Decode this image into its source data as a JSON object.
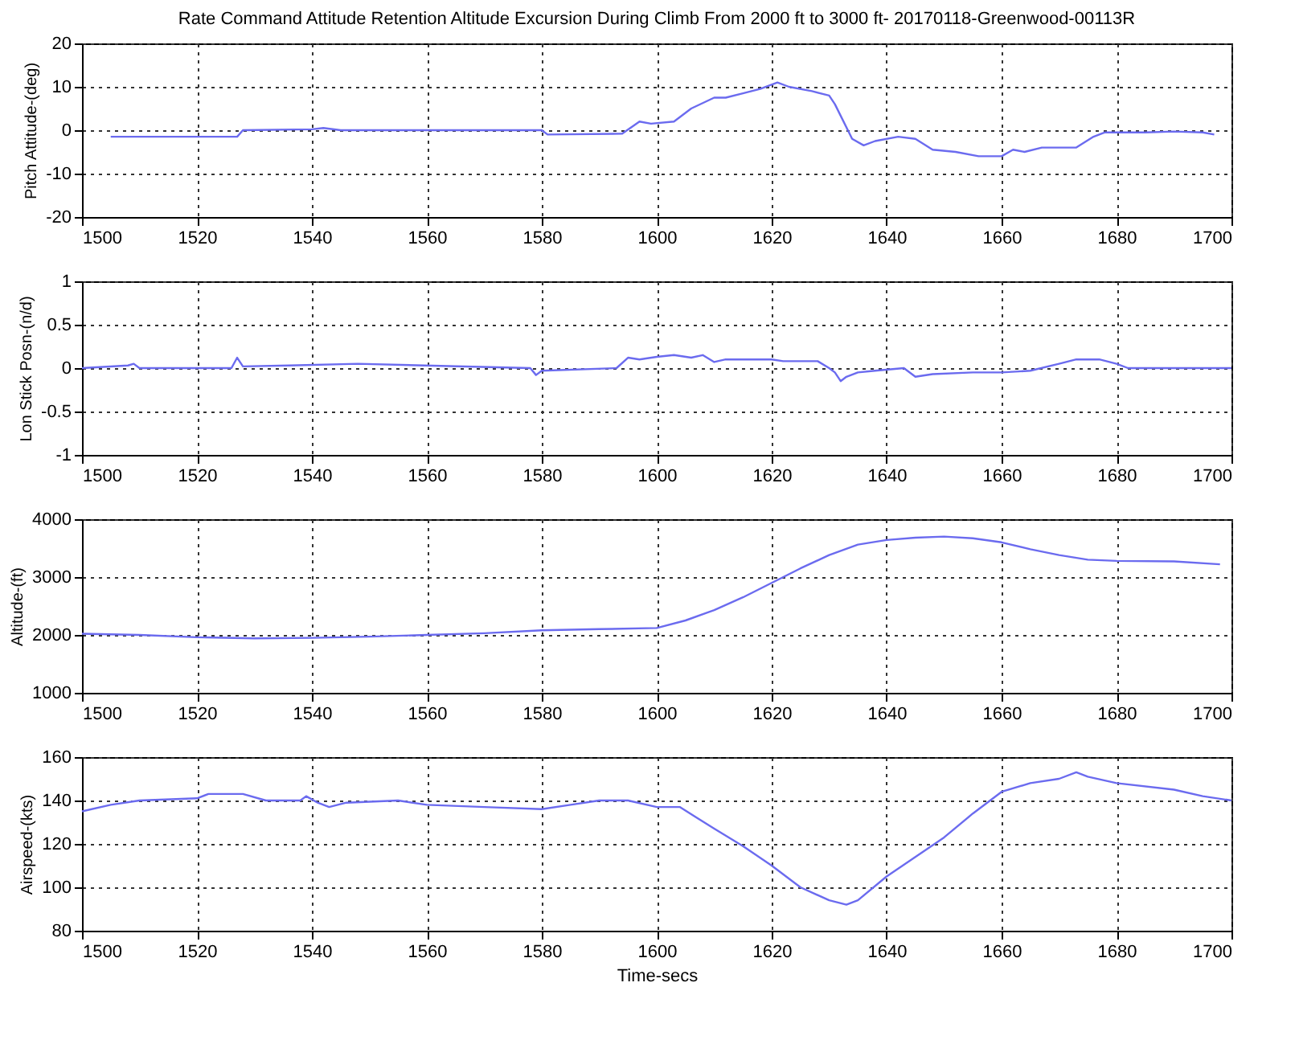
{
  "chart_data": [
    {
      "type": "line",
      "title": "Rate Command Attitude Retention Altitude Excursion During Climb From 2000 ft to 3000 ft- 20170118-Greenwood-00113R",
      "ylabel": "Pitch Attitude-(deg)",
      "x": [
        1505,
        1527,
        1528,
        1540,
        1542,
        1545,
        1580,
        1581,
        1594,
        1597,
        1599,
        1603,
        1606,
        1610,
        1612,
        1615,
        1618,
        1621,
        1623,
        1627,
        1630,
        1631,
        1634,
        1636,
        1638,
        1642,
        1645,
        1648,
        1652,
        1656,
        1660,
        1662,
        1664,
        1667,
        1673,
        1676,
        1678,
        1685,
        1690,
        1695,
        1697
      ],
      "series": [
        {
          "color": "#6b6bef",
          "values": [
            -1.5,
            -1.5,
            0,
            0.2,
            0.5,
            0,
            0,
            -1,
            -0.8,
            2,
            1.5,
            2,
            5,
            7.5,
            7.5,
            8.5,
            9.5,
            11,
            10,
            9,
            8,
            6,
            -2,
            -3.5,
            -2.5,
            -1.5,
            -2,
            -4.5,
            -5,
            -6,
            -6,
            -4.5,
            -5,
            -4,
            -4,
            -1.5,
            -0.5,
            -0.5,
            -0.3,
            -0.5,
            -1
          ]
        }
      ],
      "xlim": [
        1500,
        1700
      ],
      "xticks": [
        1500,
        1520,
        1540,
        1560,
        1580,
        1600,
        1620,
        1640,
        1660,
        1680,
        1700
      ],
      "ylim": [
        -20,
        20
      ],
      "yticks": [
        -20,
        -10,
        0,
        10,
        20
      ],
      "grid": true
    },
    {
      "type": "line",
      "ylabel": "Lon Stick Posn-(n/d)",
      "x": [
        1500,
        1508,
        1509,
        1510,
        1526,
        1527,
        1528,
        1536,
        1548,
        1578,
        1579,
        1580,
        1593,
        1595,
        1597,
        1600,
        1603,
        1606,
        1608,
        1610,
        1612,
        1620,
        1622,
        1628,
        1630,
        1631,
        1632,
        1633,
        1635,
        1638,
        1643,
        1645,
        1648,
        1655,
        1660,
        1665,
        1670,
        1673,
        1677,
        1680,
        1682,
        1700
      ],
      "series": [
        {
          "color": "#6b6bef",
          "values": [
            0,
            0.03,
            0.05,
            0,
            0,
            0.12,
            0.02,
            0.03,
            0.05,
            0,
            -0.08,
            -0.03,
            0,
            0.12,
            0.1,
            0.13,
            0.15,
            0.12,
            0.15,
            0.07,
            0.1,
            0.1,
            0.08,
            0.08,
            0,
            -0.05,
            -0.15,
            -0.1,
            -0.05,
            -0.03,
            0,
            -0.1,
            -0.07,
            -0.05,
            -0.05,
            -0.03,
            0.05,
            0.1,
            0.1,
            0.05,
            0,
            0
          ]
        }
      ],
      "xlim": [
        1500,
        1700
      ],
      "xticks": [
        1500,
        1520,
        1540,
        1560,
        1580,
        1600,
        1620,
        1640,
        1660,
        1680,
        1700
      ],
      "ylim": [
        -1,
        1
      ],
      "yticks": [
        -1,
        -0.5,
        0,
        0.5,
        1
      ],
      "grid": true
    },
    {
      "type": "line",
      "ylabel": "Altitude-(ft)",
      "x": [
        1500,
        1510,
        1520,
        1530,
        1540,
        1550,
        1560,
        1570,
        1580,
        1590,
        1600,
        1605,
        1610,
        1615,
        1620,
        1625,
        1630,
        1635,
        1640,
        1645,
        1650,
        1655,
        1660,
        1665,
        1670,
        1675,
        1680,
        1690,
        1698
      ],
      "series": [
        {
          "color": "#6b6bef",
          "values": [
            2020,
            2000,
            1960,
            1940,
            1950,
            1970,
            2000,
            2030,
            2080,
            2100,
            2120,
            2250,
            2430,
            2650,
            2900,
            3150,
            3380,
            3560,
            3640,
            3680,
            3700,
            3670,
            3600,
            3480,
            3380,
            3300,
            3280,
            3270,
            3220
          ]
        }
      ],
      "xlim": [
        1500,
        1700
      ],
      "xticks": [
        1500,
        1520,
        1540,
        1560,
        1580,
        1600,
        1620,
        1640,
        1660,
        1680,
        1700
      ],
      "ylim": [
        1000,
        4000
      ],
      "yticks": [
        1000,
        2000,
        3000,
        4000
      ],
      "grid": true
    },
    {
      "type": "line",
      "ylabel": "Airspeed-(kts)",
      "xlabel": "Time-secs",
      "x": [
        1500,
        1505,
        1510,
        1520,
        1522,
        1528,
        1532,
        1538,
        1539,
        1541,
        1543,
        1546,
        1555,
        1560,
        1570,
        1580,
        1585,
        1590,
        1595,
        1600,
        1604,
        1610,
        1615,
        1620,
        1625,
        1630,
        1633,
        1635,
        1640,
        1645,
        1650,
        1655,
        1660,
        1665,
        1670,
        1673,
        1675,
        1680,
        1690,
        1695,
        1700
      ],
      "series": [
        {
          "color": "#6b6bef",
          "values": [
            135,
            138,
            140,
            141,
            143,
            143,
            140,
            140,
            142,
            139,
            137,
            139,
            140,
            138,
            137,
            136,
            138,
            140,
            140,
            137,
            137,
            127,
            119,
            110,
            100,
            94,
            92,
            94,
            105,
            114,
            123,
            134,
            144,
            148,
            150,
            153,
            151,
            148,
            145,
            142,
            140
          ]
        }
      ],
      "xlim": [
        1500,
        1700
      ],
      "xticks": [
        1500,
        1520,
        1540,
        1560,
        1580,
        1600,
        1620,
        1640,
        1660,
        1680,
        1700
      ],
      "ylim": [
        80,
        160
      ],
      "yticks": [
        80,
        100,
        120,
        140,
        160
      ],
      "grid": true
    }
  ]
}
